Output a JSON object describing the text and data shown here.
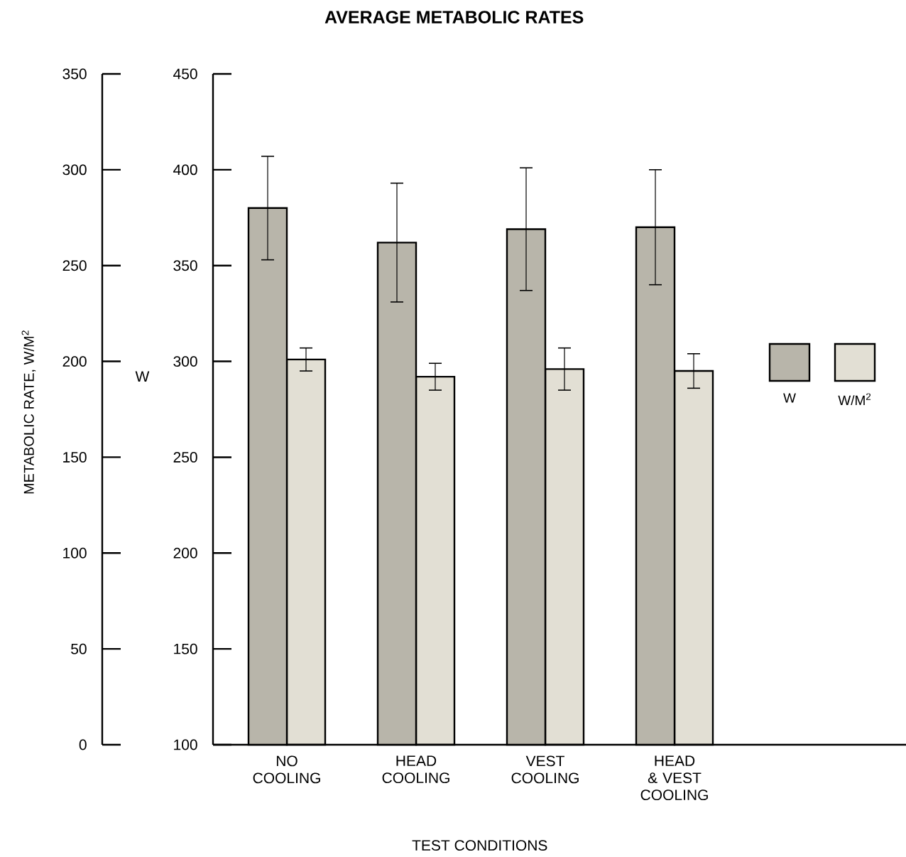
{
  "chart_data": {
    "type": "bar",
    "title": "AVERAGE METABOLIC RATES",
    "xlabel": "TEST CONDITIONS",
    "ylabel": "METABOLIC RATE, W/M$^{2}$",
    "y2label": "W",
    "categories": [
      "NO COOLING",
      "HEAD COOLING",
      "VEST COOLING",
      "HEAD & VEST COOLING"
    ],
    "series": [
      {
        "name": "W",
        "color": "#b8b5aa",
        "axis": "y2",
        "values": [
          380,
          362,
          369,
          370
        ],
        "errors": [
          27,
          31,
          32,
          30
        ]
      },
      {
        "name": "W/M$^{2}$",
        "color": "#e2dfd4",
        "values": [
          201,
          192,
          196,
          195
        ],
        "errors": [
          6,
          7,
          11,
          9
        ]
      }
    ],
    "ylim": [
      0,
      350
    ],
    "yticks": [
      0,
      50,
      100,
      150,
      200,
      250,
      300,
      350
    ],
    "y2lim": [
      100,
      450
    ],
    "y2ticks": [
      100,
      150,
      200,
      250,
      300,
      350,
      400,
      450
    ],
    "legend": "right"
  }
}
